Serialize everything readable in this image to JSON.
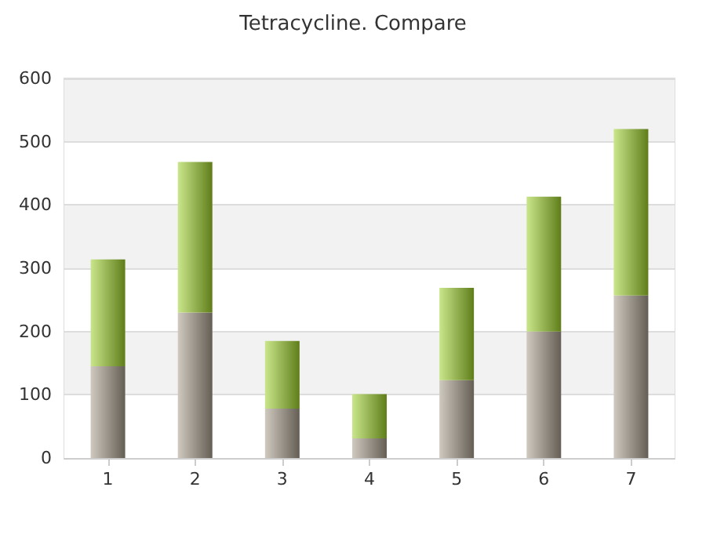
{
  "chart_data": {
    "type": "bar",
    "title": "Tetracycline. Compare",
    "stacked": true,
    "categories": [
      "1",
      "2",
      "3",
      "4",
      "5",
      "6",
      "7"
    ],
    "series": [
      {
        "color": "#a89c8c",
        "values": [
          145,
          230,
          78,
          31,
          123,
          200,
          257
        ]
      },
      {
        "color": "#9ed22c",
        "values": [
          169,
          238,
          107,
          70,
          146,
          213,
          263
        ]
      }
    ],
    "ylim": [
      0,
      600
    ],
    "yticks": [
      0,
      100,
      200,
      300,
      400,
      500,
      600
    ],
    "grid": "y"
  }
}
